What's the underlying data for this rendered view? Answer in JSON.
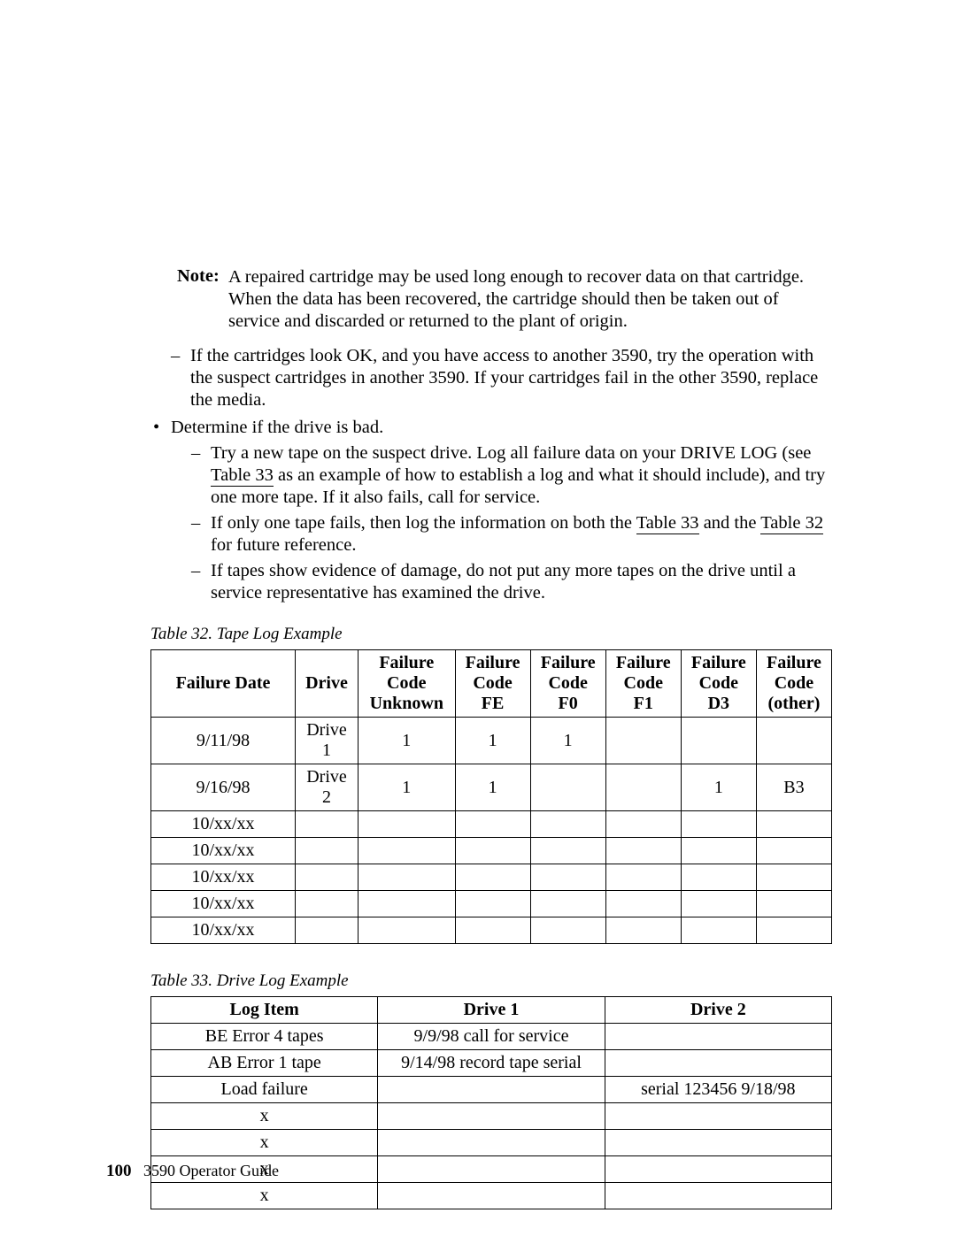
{
  "note": {
    "label": "Note:",
    "text": "A repaired cartridge may be used long enough to recover data on that cartridge. When the data has been recovered, the cartridge should then be taken out of service and discarded or returned to the plant of origin."
  },
  "dash_pre": "If the cartridges look OK, and you have access to another 3590, try the operation with the suspect cartridges in another 3590. If your cartridges fail in the other 3590, replace the media.",
  "bullet1": "Determine if the drive is bad.",
  "sub": {
    "a_pre": "Try a new tape on the suspect drive. Log all failure data on your DRIVE LOG (see ",
    "a_link": "Table 33",
    "a_post": " as an example of how to establish a log and what it should include), and try one more tape. If it also fails, call for service.",
    "b_pre": "If only one tape fails, then log the information on both the ",
    "b_link1": "Table 33",
    "b_mid": " and the ",
    "b_link2": "Table 32",
    "b_post": " for future reference.",
    "c": "If tapes show evidence of damage, do not put any more tapes on the drive until a service representative has examined the drive."
  },
  "table32": {
    "caption": "Table 32. Tape Log Example",
    "headers": [
      "Failure Date",
      "Drive",
      "Failure Code Unknown",
      "Failure Code FE",
      "Failure Code F0",
      "Failure Code F1",
      "Failure Code D3",
      "Failure Code (other)"
    ],
    "h": {
      "c0": "Failure Date",
      "c1": "Drive",
      "c2a": "Failure",
      "c2b": "Code",
      "c2c": "Unknown",
      "c3a": "Failure",
      "c3b": "Code",
      "c3c": "FE",
      "c4a": "Failure",
      "c4b": "Code",
      "c4c": "F0",
      "c5a": "Failure",
      "c5b": "Code",
      "c5c": "F1",
      "c6a": "Failure",
      "c6b": "Code",
      "c6c": "D3",
      "c7a": "Failure",
      "c7b": "Code",
      "c7c": "(other)"
    },
    "rows": [
      {
        "date": "9/11/98",
        "drive_a": "Drive",
        "drive_b": "1",
        "unk": "1",
        "fe": "1",
        "f0": "1",
        "f1": "",
        "d3": "",
        "other": ""
      },
      {
        "date": "9/16/98",
        "drive_a": "Drive",
        "drive_b": "2",
        "unk": "1",
        "fe": "1",
        "f0": "",
        "f1": "",
        "d3": "1",
        "other": "B3"
      },
      {
        "date": "10/xx/xx",
        "drive_a": "",
        "drive_b": "",
        "unk": "",
        "fe": "",
        "f0": "",
        "f1": "",
        "d3": "",
        "other": ""
      },
      {
        "date": "10/xx/xx",
        "drive_a": "",
        "drive_b": "",
        "unk": "",
        "fe": "",
        "f0": "",
        "f1": "",
        "d3": "",
        "other": ""
      },
      {
        "date": "10/xx/xx",
        "drive_a": "",
        "drive_b": "",
        "unk": "",
        "fe": "",
        "f0": "",
        "f1": "",
        "d3": "",
        "other": ""
      },
      {
        "date": "10/xx/xx",
        "drive_a": "",
        "drive_b": "",
        "unk": "",
        "fe": "",
        "f0": "",
        "f1": "",
        "d3": "",
        "other": ""
      },
      {
        "date": "10/xx/xx",
        "drive_a": "",
        "drive_b": "",
        "unk": "",
        "fe": "",
        "f0": "",
        "f1": "",
        "d3": "",
        "other": ""
      }
    ]
  },
  "table33": {
    "caption": "Table 33. Drive Log Example",
    "h": {
      "c0": "Log Item",
      "c1": "Drive 1",
      "c2": "Drive 2"
    },
    "rows": [
      {
        "item": "BE Error 4 tapes",
        "d1": "9/9/98 call for service",
        "d2": ""
      },
      {
        "item": "AB Error 1 tape",
        "d1": "9/14/98 record tape serial",
        "d2": ""
      },
      {
        "item": "Load failure",
        "d1": "",
        "d2": "serial 123456 9/18/98"
      },
      {
        "item": "x",
        "d1": "",
        "d2": ""
      },
      {
        "item": "x",
        "d1": "",
        "d2": ""
      },
      {
        "item": "x",
        "d1": "",
        "d2": ""
      },
      {
        "item": "x",
        "d1": "",
        "d2": ""
      }
    ]
  },
  "footer": {
    "page": "100",
    "title": "3590 Operator Guide"
  }
}
